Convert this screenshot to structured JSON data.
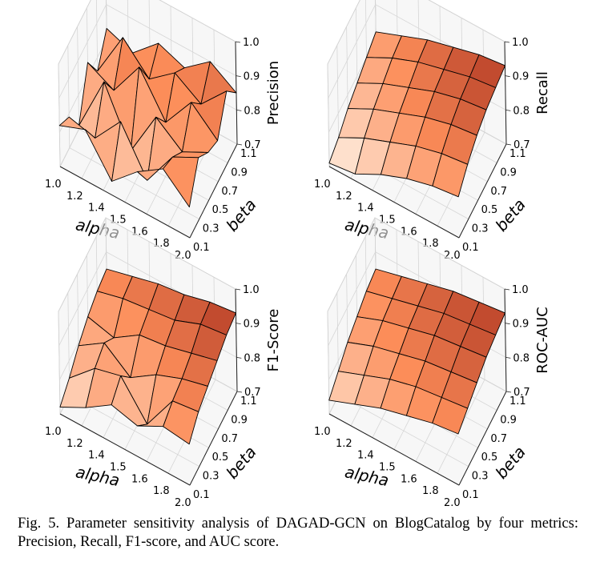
{
  "figure": {
    "caption": "Fig. 5.  Parameter sensitivity analysis of DAGAD-GCN on BlogCatalog by four metrics: Precision, Recall, F1-score, and AUC score."
  },
  "colors": {
    "colormap": "OrRd",
    "low": "#fff7ec",
    "mid": "#fc8d59",
    "high": "#7f0000",
    "grid": "#d6d6d6",
    "edge": "#000000"
  },
  "chart_data": [
    {
      "type": "surface3d",
      "title": "",
      "xlabel": "alpha",
      "ylabel": "beta",
      "zlabel": "Precision",
      "xticks": [
        "1.0",
        "1.2",
        "1.4",
        "1.5",
        "1.6",
        "1.8",
        "2.0"
      ],
      "yticks": [
        "0.1",
        "0.3",
        "0.5",
        "0.7",
        "0.9",
        "1.1"
      ],
      "zticks": [
        "0.7",
        "0.8",
        "0.9",
        "1.0"
      ],
      "zlim": [
        0.7,
        1.0
      ],
      "alpha": [
        1.0,
        1.2,
        1.4,
        1.6,
        1.8,
        2.0
      ],
      "beta": [
        0.1,
        0.3,
        0.5,
        0.7,
        0.9,
        1.1
      ],
      "z": [
        [
          0.82,
          0.79,
          0.71,
          0.84,
          0.76,
          0.83
        ],
        [
          0.85,
          0.77,
          0.88,
          0.8,
          0.9,
          0.8
        ],
        [
          0.74,
          0.86,
          0.72,
          0.91,
          0.82,
          0.87
        ],
        [
          0.81,
          0.73,
          0.86,
          0.79,
          0.88,
          0.84
        ],
        [
          0.86,
          0.84,
          0.8,
          0.89,
          0.83,
          0.9
        ],
        [
          0.79,
          0.88,
          0.84,
          0.82,
          0.91,
          0.85
        ]
      ]
    },
    {
      "type": "surface3d",
      "title": "",
      "xlabel": "alpha",
      "ylabel": "beta",
      "zlabel": "Recall",
      "xticks": [
        "1.0",
        "1.2",
        "1.4",
        "1.5",
        "1.6",
        "1.8",
        "2.0"
      ],
      "yticks": [
        "0.1",
        "0.3",
        "0.5",
        "0.7",
        "0.9",
        "1.1"
      ],
      "zticks": [
        "0.7",
        "0.8",
        "0.9",
        "1.0"
      ],
      "zlim": [
        0.7,
        1.0
      ],
      "alpha": [
        1.0,
        1.2,
        1.4,
        1.6,
        1.8,
        2.0
      ],
      "beta": [
        0.1,
        0.3,
        0.5,
        0.7,
        0.9,
        1.1
      ],
      "z": [
        [
          0.71,
          0.73,
          0.76,
          0.78,
          0.8,
          0.82
        ],
        [
          0.72,
          0.77,
          0.8,
          0.82,
          0.84,
          0.85
        ],
        [
          0.76,
          0.8,
          0.83,
          0.85,
          0.87,
          0.88
        ],
        [
          0.79,
          0.83,
          0.86,
          0.88,
          0.89,
          0.9
        ],
        [
          0.81,
          0.85,
          0.88,
          0.9,
          0.91,
          0.92
        ],
        [
          0.82,
          0.86,
          0.89,
          0.91,
          0.92,
          0.93
        ]
      ]
    },
    {
      "type": "surface3d",
      "title": "",
      "xlabel": "alpha",
      "ylabel": "beta",
      "zlabel": "F1-Score",
      "xticks": [
        "1.0",
        "1.2",
        "1.4",
        "1.5",
        "1.6",
        "1.8",
        "2.0"
      ],
      "yticks": [
        "0.1",
        "0.3",
        "0.5",
        "0.7",
        "0.9",
        "1.1"
      ],
      "zticks": [
        "0.7",
        "0.8",
        "0.9",
        "1.0"
      ],
      "zlim": [
        0.7,
        1.0
      ],
      "alpha": [
        1.0,
        1.2,
        1.4,
        1.6,
        1.8,
        2.0
      ],
      "beta": [
        0.1,
        0.3,
        0.5,
        0.7,
        0.9,
        1.1
      ],
      "z": [
        [
          0.72,
          0.75,
          0.79,
          0.82,
          0.84,
          0.85
        ],
        [
          0.76,
          0.82,
          0.84,
          0.8,
          0.86,
          0.87
        ],
        [
          0.81,
          0.84,
          0.78,
          0.85,
          0.87,
          0.89
        ],
        [
          0.79,
          0.74,
          0.83,
          0.86,
          0.88,
          0.9
        ],
        [
          0.83,
          0.85,
          0.86,
          0.88,
          0.91,
          0.92
        ],
        [
          0.82,
          0.86,
          0.88,
          0.9,
          0.92,
          0.93
        ]
      ]
    },
    {
      "type": "surface3d",
      "title": "",
      "xlabel": "alpha",
      "ylabel": "beta",
      "zlabel": "ROC-AUC",
      "xticks": [
        "1.0",
        "1.2",
        "1.4",
        "1.5",
        "1.6",
        "1.8",
        "2.0"
      ],
      "yticks": [
        "0.1",
        "0.3",
        "0.5",
        "0.7",
        "0.9",
        "1.1"
      ],
      "zticks": [
        "0.7",
        "0.8",
        "0.9",
        "1.0"
      ],
      "zlim": [
        0.7,
        1.0
      ],
      "alpha": [
        1.0,
        1.2,
        1.4,
        1.6,
        1.8,
        2.0
      ],
      "beta": [
        0.1,
        0.3,
        0.5,
        0.7,
        0.9,
        1.1
      ],
      "z": [
        [
          0.74,
          0.77,
          0.8,
          0.82,
          0.84,
          0.85
        ],
        [
          0.77,
          0.8,
          0.83,
          0.85,
          0.86,
          0.87
        ],
        [
          0.8,
          0.83,
          0.85,
          0.87,
          0.88,
          0.89
        ],
        [
          0.82,
          0.85,
          0.87,
          0.89,
          0.9,
          0.91
        ],
        [
          0.84,
          0.86,
          0.88,
          0.9,
          0.91,
          0.92
        ],
        [
          0.85,
          0.87,
          0.89,
          0.91,
          0.92,
          0.93
        ]
      ]
    }
  ]
}
